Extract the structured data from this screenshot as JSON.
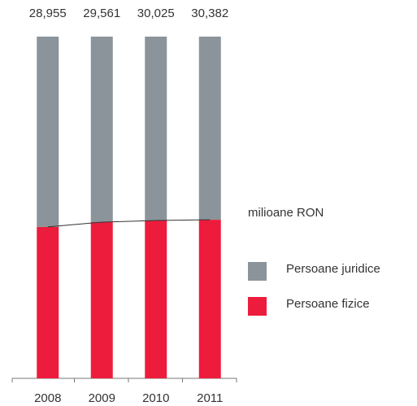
{
  "chart_data": {
    "type": "stacked_bar",
    "unit_label": "milioane RON",
    "categories": [
      "2008",
      "2009",
      "2010",
      "2011"
    ],
    "series": [
      {
        "name": "Persoane fizice",
        "color": "#ee1c3c",
        "values": [
          12830,
          13510,
          13870,
          14100
        ]
      },
      {
        "name": "Persoane juridice",
        "color": "#8b949a",
        "values": [
          16125,
          16051,
          16155,
          16282
        ]
      }
    ],
    "totals": [
      28955,
      29561,
      30025,
      30382
    ],
    "total_labels": [
      "28,955",
      "29,561",
      "30,025",
      "30,382"
    ],
    "normalized": true,
    "connector_line": true
  }
}
